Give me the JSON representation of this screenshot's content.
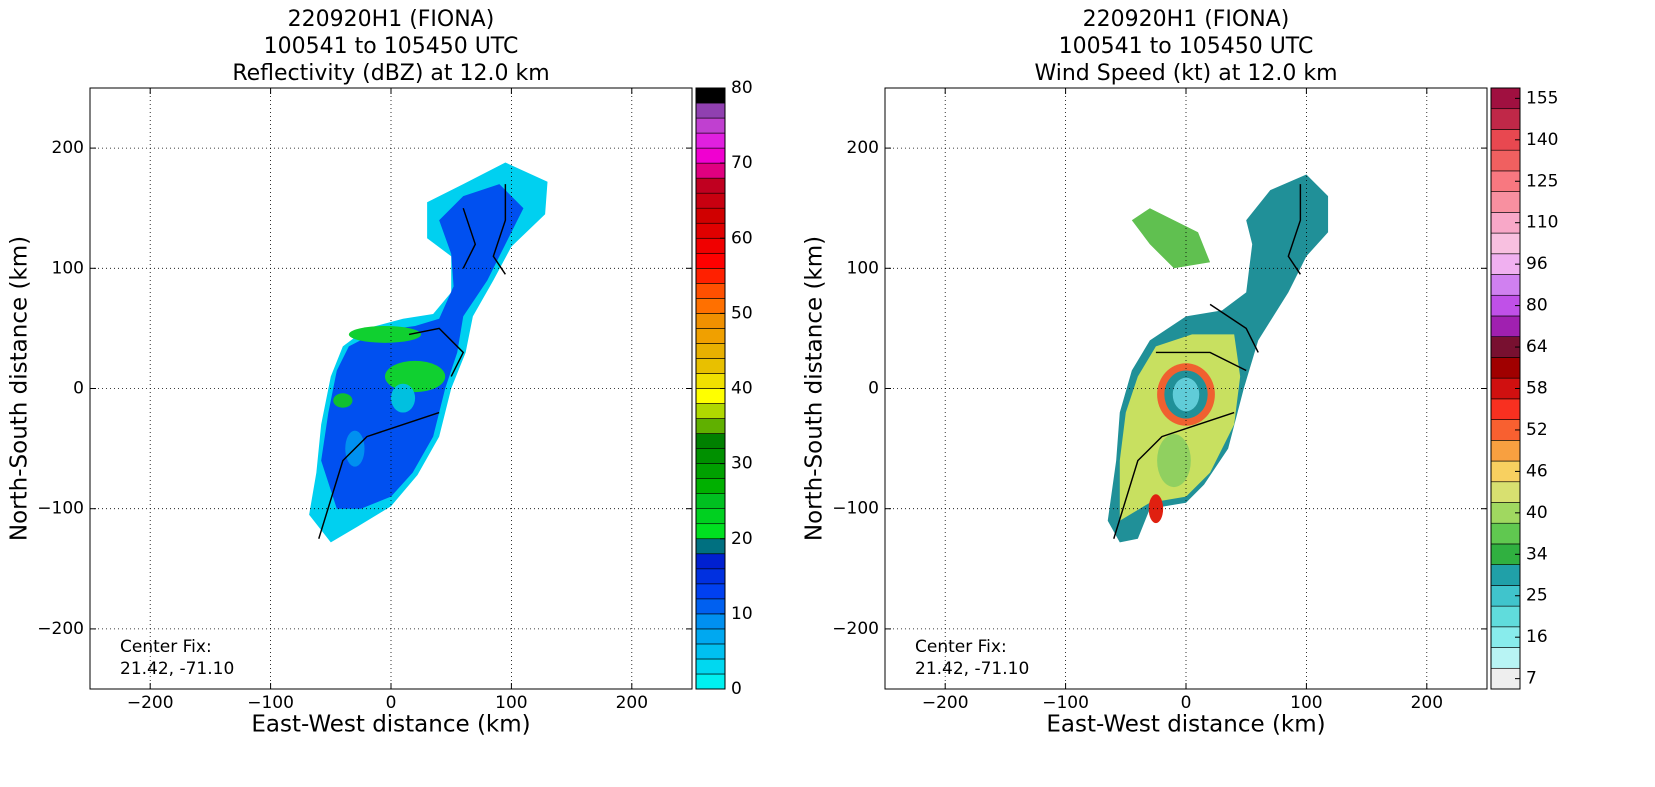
{
  "chart_data": [
    {
      "type": "heatmap",
      "title": [
        "220920H1 (FIONA)",
        "100541 to 105450 UTC",
        "Reflectivity (dBZ) at 12.0 km"
      ],
      "xlabel": "East-West distance (km)",
      "ylabel": "North-South distance (km)",
      "xlim": [
        -250,
        250
      ],
      "ylim": [
        -250,
        250
      ],
      "xticks": [
        {
          "value": -200,
          "label": "−200"
        },
        {
          "value": -100,
          "label": "−100"
        },
        0,
        100,
        200
      ],
      "yticks": [
        {
          "value": -200,
          "label": "−200"
        },
        {
          "value": -100,
          "label": "−100"
        },
        0,
        100,
        200
      ],
      "grid": true,
      "annotation": [
        "Center Fix:",
        "21.42, -71.10"
      ],
      "colorbar": {
        "clim": [
          0,
          80
        ],
        "ticks": [
          0,
          10,
          20,
          30,
          40,
          50,
          60,
          70,
          80
        ],
        "colors": [
          "#00f0f0",
          "#00d8f0",
          "#00c0f0",
          "#00a8f0",
          "#0090f0",
          "#0060f0",
          "#0040f0",
          "#0030e0",
          "#0020d0",
          "#007080",
          "#00e020",
          "#00d020",
          "#00c020",
          "#00b000",
          "#00a000",
          "#009000",
          "#008000",
          "#60b000",
          "#b0d800",
          "#ffff00",
          "#f0e000",
          "#e8c000",
          "#e8b000",
          "#f0a000",
          "#f09000",
          "#ff7000",
          "#ff5000",
          "#ff2000",
          "#ff0000",
          "#f00000",
          "#e00000",
          "#d00000",
          "#c80010",
          "#c00020",
          "#e00080",
          "#f000d0",
          "#e020e0",
          "#c040d0",
          "#9040b0",
          "#000000"
        ]
      }
    },
    {
      "type": "heatmap",
      "title": [
        "220920H1 (FIONA)",
        "100541 to 105450 UTC",
        "Wind Speed (kt) at 12.0 km"
      ],
      "xlabel": "East-West distance (km)",
      "ylabel": "North-South distance (km)",
      "xlim": [
        -250,
        250
      ],
      "ylim": [
        -250,
        250
      ],
      "xticks": [
        {
          "value": -200,
          "label": "−200"
        },
        {
          "value": -100,
          "label": "−100"
        },
        0,
        100,
        200
      ],
      "yticks": [
        {
          "value": -200,
          "label": "−200"
        },
        {
          "value": -100,
          "label": "−100"
        },
        0,
        100,
        200
      ],
      "grid": true,
      "annotation": [
        "Center Fix:",
        "21.42, -71.10"
      ],
      "colorbar": {
        "levels": [
          7,
          11.5,
          16,
          20.5,
          25,
          29.5,
          34,
          37,
          40,
          43,
          46,
          49,
          52,
          55,
          58,
          61,
          64,
          72,
          80,
          88,
          96,
          103,
          110,
          117.5,
          125,
          132.5,
          140,
          147.5,
          155
        ],
        "ticks": [
          7,
          16,
          25,
          34,
          40,
          46,
          52,
          58,
          64,
          80,
          96,
          110,
          125,
          140,
          155
        ],
        "colors": [
          "#eeeeee",
          "#b8f4f4",
          "#88ecec",
          "#60dcdc",
          "#40c4cc",
          "#20a0a8",
          "#30b040",
          "#60c850",
          "#a0d860",
          "#d8e070",
          "#f8d060",
          "#f8a040",
          "#f86030",
          "#f83020",
          "#d01010",
          "#a00000",
          "#781030",
          "#a020b0",
          "#c050e8",
          "#d080f0",
          "#f0b0f0",
          "#f8c0e0",
          "#f8a8c8",
          "#f890a0",
          "#f87880",
          "#f06060",
          "#e84850",
          "#c02848",
          "#a01040"
        ]
      }
    }
  ]
}
